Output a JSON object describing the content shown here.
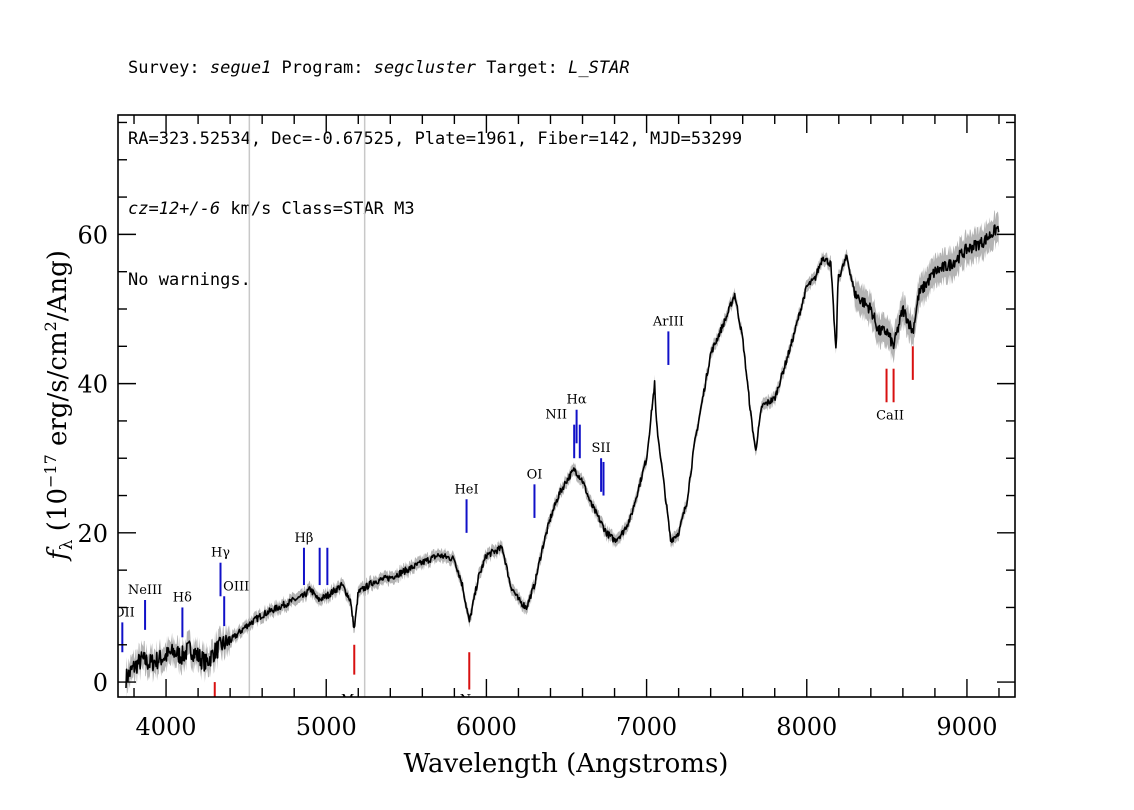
{
  "header": {
    "line1": {
      "survey_label": "Survey: ",
      "survey": "segue1",
      "program_label": " Program: ",
      "program": "segcluster",
      "target_label": " Target: ",
      "target": "L_STAR"
    },
    "line2": "RA=323.52534, Dec=-0.67525, Plate=1961, Fiber=142, MJD=53299",
    "line3": {
      "cz": "cz=12+/-6",
      "rest": " km/s Class=STAR M3"
    },
    "line4": "No warnings."
  },
  "colors": {
    "spectrum": "#000000",
    "error_band": "#b4b4b4",
    "emission": "#1010c8",
    "absorption": "#d81010",
    "masked": "#c8c8c8"
  },
  "chart_data": {
    "type": "line",
    "xlabel": "Wavelength (Angstroms)",
    "ylabel": "f_λ (10^-17 erg/s/cm^2/Ang)",
    "xlim": [
      3700,
      9300
    ],
    "ylim": [
      -2,
      76
    ],
    "x_ticks": [
      4000,
      5000,
      6000,
      7000,
      8000,
      9000
    ],
    "y_ticks": [
      0,
      20,
      40,
      60
    ],
    "series": [
      {
        "x": [
          3750,
          3800,
          3850,
          3900,
          3950,
          4000,
          4050,
          4100,
          4150,
          4200,
          4250,
          4300,
          4350,
          4400,
          4500,
          4600,
          4700,
          4800,
          4860,
          4900,
          4950,
          5000,
          5100,
          5150,
          5175,
          5200,
          5300,
          5400,
          5500,
          5600,
          5700,
          5800,
          5850,
          5893,
          5950,
          6000,
          6100,
          6150,
          6200,
          6250,
          6300,
          6350,
          6400,
          6450,
          6500,
          6550,
          6600,
          6650,
          6700,
          6750,
          6800,
          6850,
          6900,
          7000,
          7050,
          7060,
          7100,
          7150,
          7200,
          7250,
          7300,
          7400,
          7500,
          7550,
          7600,
          7650,
          7680,
          7720,
          7800,
          7900,
          8000,
          8050,
          8100,
          8150,
          8183,
          8195,
          8250,
          8300,
          8350,
          8400,
          8450,
          8500,
          8542,
          8600,
          8662,
          8700,
          8800,
          8900,
          9000,
          9100,
          9200
        ],
        "y": [
          0.5,
          2,
          3,
          2.5,
          3,
          3.5,
          4,
          3.5,
          4.5,
          3.5,
          2.5,
          4,
          5,
          5.5,
          7.5,
          9,
          10,
          11,
          11.5,
          12.5,
          11,
          11.5,
          13,
          11,
          7,
          12,
          13.5,
          14,
          15,
          16,
          17,
          16.5,
          13,
          8,
          14,
          17,
          18,
          13,
          11,
          10,
          13,
          18,
          22,
          25,
          27,
          28.5,
          27,
          24,
          22,
          20,
          19,
          20,
          22,
          30,
          40,
          35,
          28,
          19,
          20,
          24,
          32,
          44,
          49,
          52,
          46,
          36,
          31,
          37,
          38,
          45,
          53,
          54,
          57,
          56,
          44,
          54,
          57,
          52,
          51,
          50,
          47,
          47,
          45,
          50,
          47,
          52,
          55,
          56,
          58,
          59,
          61
        ]
      }
    ],
    "masked_wavelengths": [
      4520,
      5240
    ],
    "emission_lines": [
      {
        "label": "OII",
        "wavelength": 3727,
        "y_bottom": 4,
        "y_top": 8
      },
      {
        "label": "NeIII",
        "wavelength": 3869,
        "y_bottom": 7,
        "y_top": 11
      },
      {
        "label": "Hδ",
        "wavelength": 4102,
        "y_bottom": 6,
        "y_top": 10
      },
      {
        "label": "Hγ",
        "wavelength": 4340,
        "y_bottom": 11.5,
        "y_top": 16
      },
      {
        "label": "OIII",
        "wavelength": 4363,
        "y_bottom": 7.5,
        "y_top": 11.5
      },
      {
        "label": "Hβ",
        "wavelength": 4861,
        "y_bottom": 13,
        "y_top": 18
      },
      {
        "label": "OIII",
        "wavelength": 4959,
        "y_bottom": 13,
        "y_top": 18
      },
      {
        "label": "OIII",
        "wavelength": 5007,
        "y_bottom": 13,
        "y_top": 18
      },
      {
        "label": "HeI",
        "wavelength": 5876,
        "y_bottom": 20,
        "y_top": 24.5
      },
      {
        "label": "OI",
        "wavelength": 6300,
        "y_bottom": 22,
        "y_top": 26.5
      },
      {
        "label": "NII",
        "wavelength": 6548,
        "y_bottom": 30,
        "y_top": 34.5
      },
      {
        "label": "Hα",
        "wavelength": 6563,
        "y_bottom": 32,
        "y_top": 36.5
      },
      {
        "label": "NII",
        "wavelength": 6583,
        "y_bottom": 30,
        "y_top": 34.5
      },
      {
        "label": "SII",
        "wavelength": 6716,
        "y_bottom": 25.5,
        "y_top": 30
      },
      {
        "label": "SII",
        "wavelength": 6731,
        "y_bottom": 25,
        "y_top": 29.5
      },
      {
        "label": "ArIII",
        "wavelength": 7136,
        "y_bottom": 42.5,
        "y_top": 47
      }
    ],
    "absorption_lines": [
      {
        "label": "CaII",
        "wavelength": 8498,
        "y_bottom": 37.5,
        "y_top": 42
      },
      {
        "label": "CaII",
        "wavelength": 8542,
        "y_bottom": 37.5,
        "y_top": 42
      },
      {
        "label": "",
        "wavelength": 8662,
        "y_bottom": 40.5,
        "y_top": 45
      },
      {
        "label": "",
        "wavelength": 5175,
        "y_bottom": 1,
        "y_top": 5
      },
      {
        "label": "",
        "wavelength": 5893,
        "y_bottom": -1,
        "y_top": 4
      },
      {
        "label": "",
        "wavelength": 4304,
        "y_bottom": -2,
        "y_top": 0
      }
    ],
    "partial_labels": [
      {
        "text": "Mg",
        "wavelength": 5160,
        "y": -1.8
      },
      {
        "text": "Na",
        "wavelength": 5893,
        "y": -1.8
      }
    ]
  }
}
